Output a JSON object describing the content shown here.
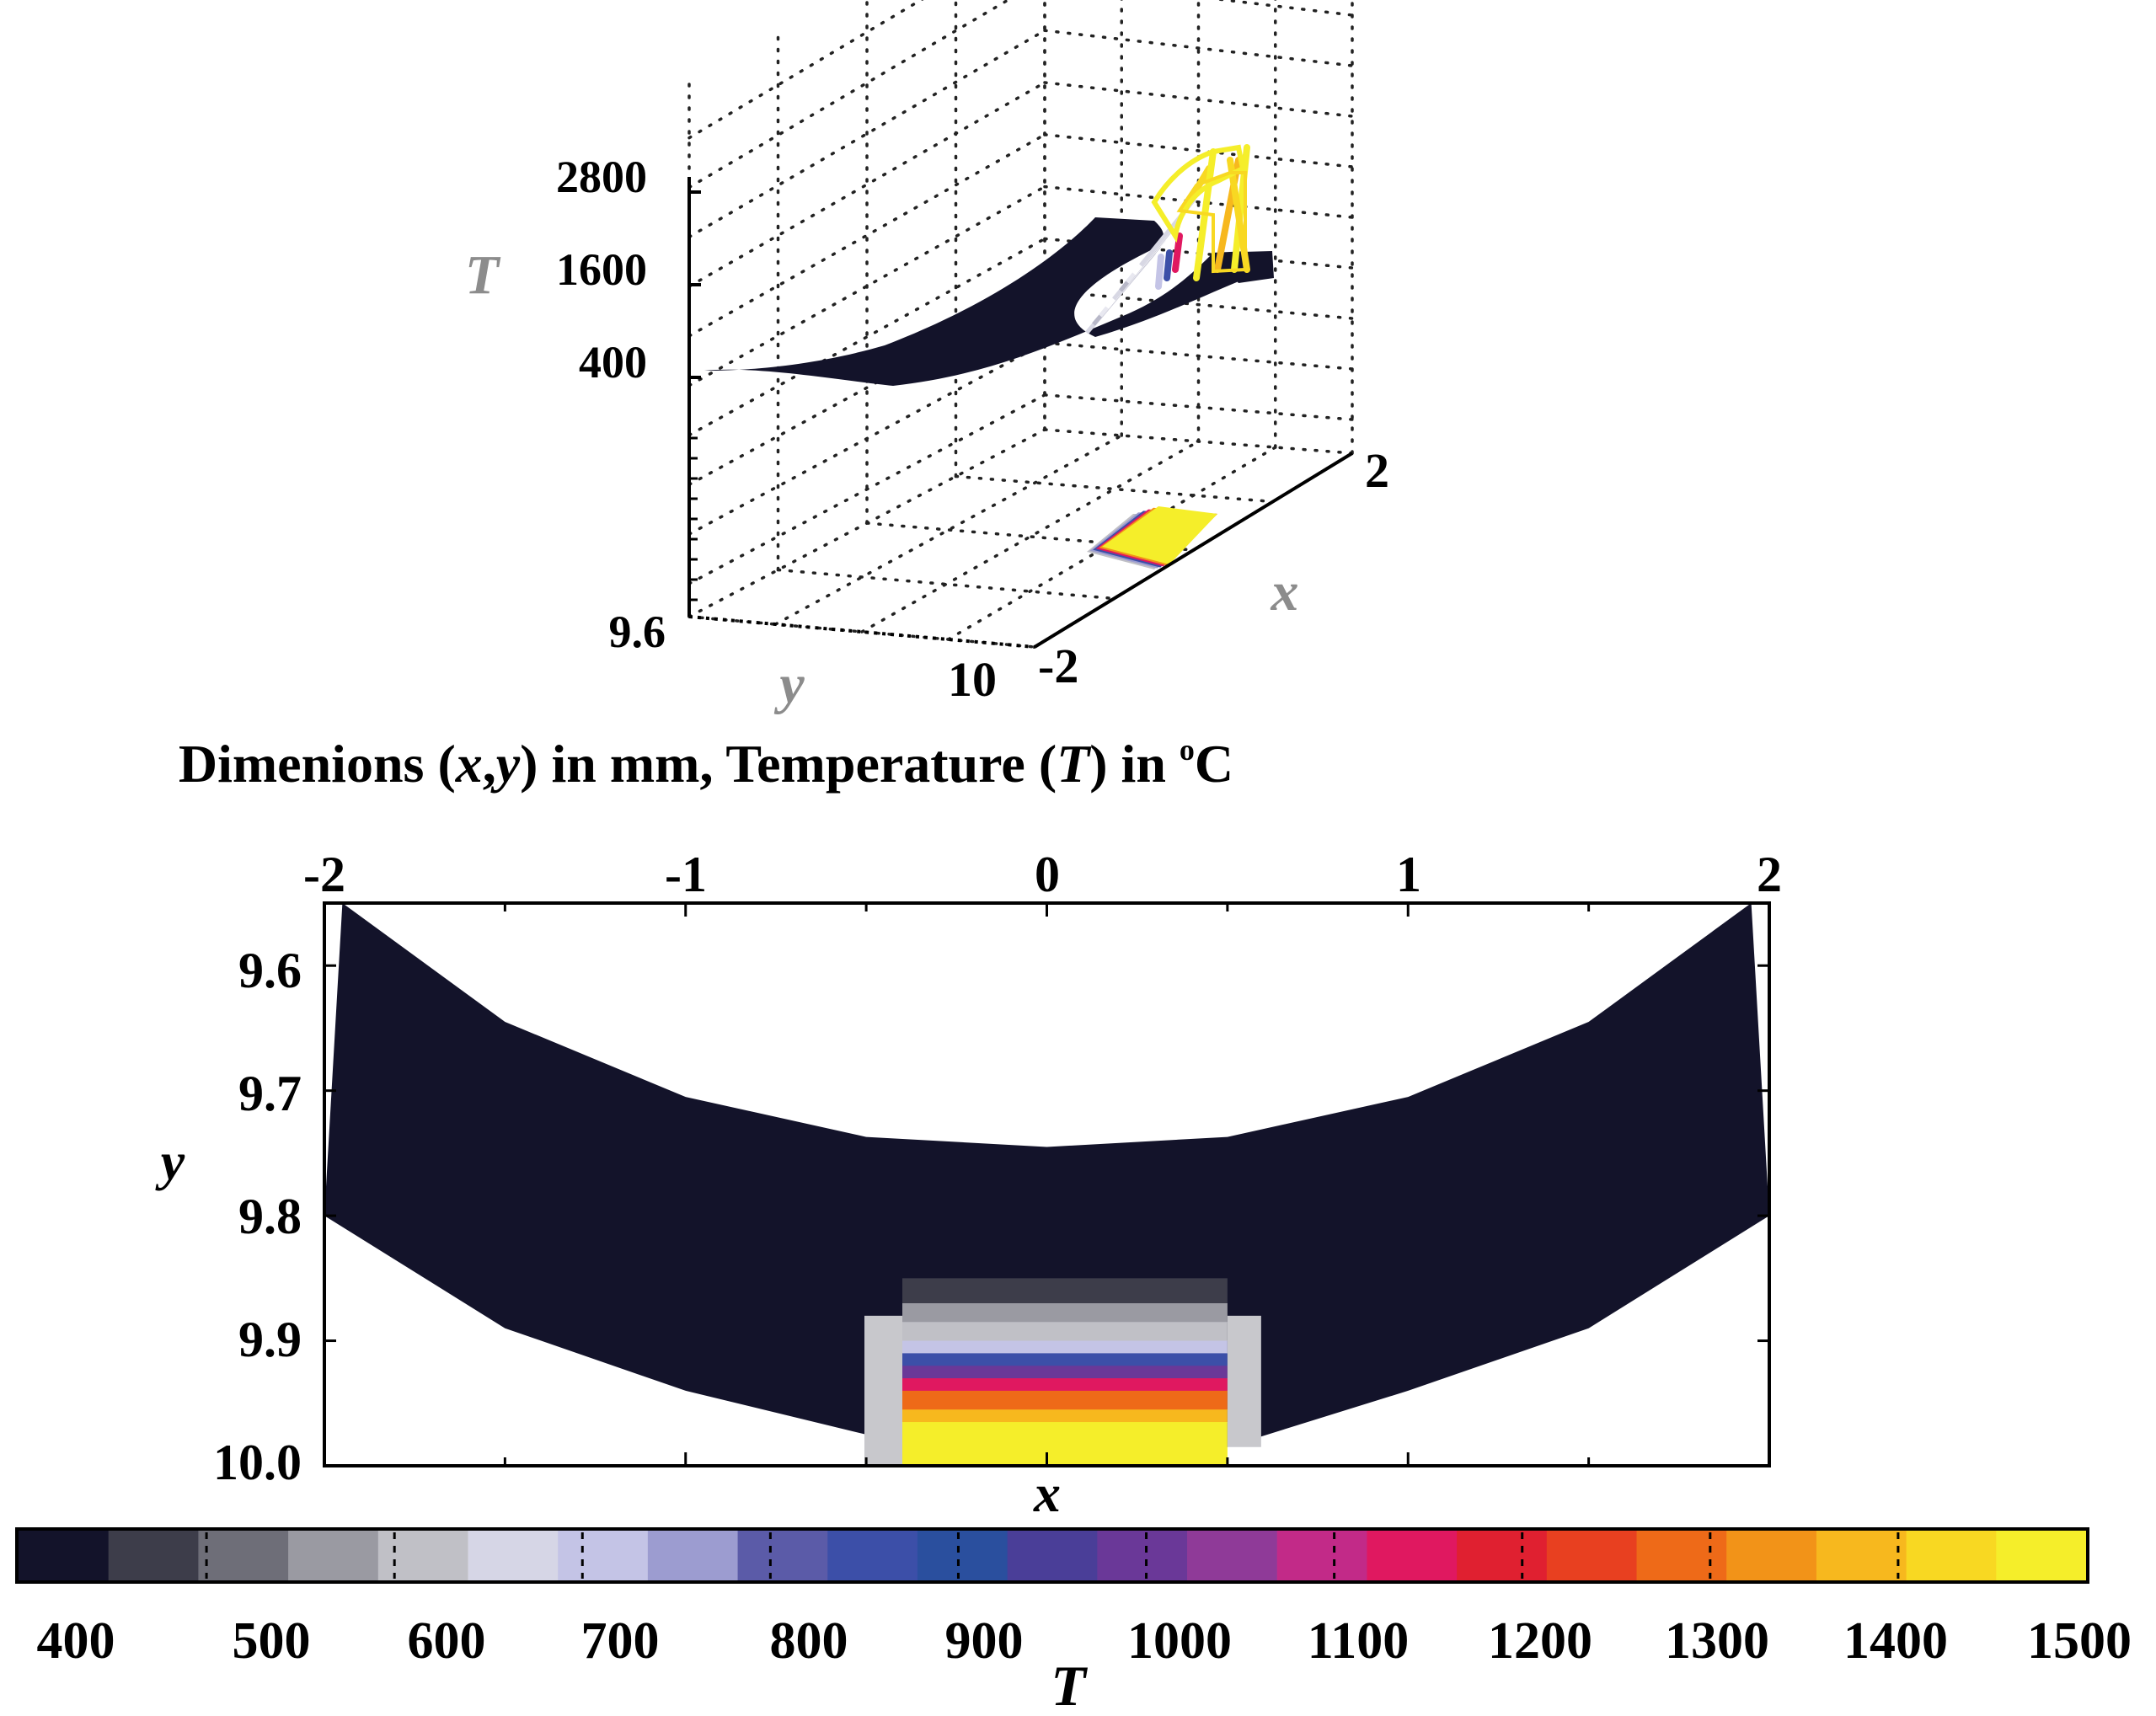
{
  "top_plot": {
    "z_label": "T",
    "x_label": "x",
    "y_label": "y",
    "z_ticks": [
      "2800",
      "1600",
      "400"
    ],
    "x_ticks": [
      "-2",
      "2"
    ],
    "y_ticks": [
      "9.6",
      "10"
    ],
    "caption_prefix": "Dimenions (",
    "caption_x": "x",
    "caption_comma": ",",
    "caption_y": "y",
    "caption_mid": ") in mm, Temperature (",
    "caption_T": "T",
    "caption_mid2": ") in ",
    "caption_degree": "o",
    "caption_unit": "C"
  },
  "chart_data": [
    {
      "type": "surface",
      "zlabel": "T",
      "xlabel": "x",
      "ylabel": "y",
      "z_ticks": [
        2800,
        1600,
        400
      ],
      "x_range": [
        -2,
        2
      ],
      "y_range": [
        9.6,
        10
      ],
      "peak_T": 2800,
      "peak_location": {
        "x": 0.5,
        "y": 10
      }
    },
    {
      "type": "heatmap",
      "xlabel": "x",
      "ylabel": "y",
      "x_ticks": [
        -2,
        -1,
        0,
        1,
        2
      ],
      "y_ticks": [
        "9.6",
        "9.7",
        "9.8",
        "9.9",
        "10.0"
      ],
      "xlim": [
        -2,
        2
      ],
      "ylim": [
        10.0,
        9.55
      ],
      "domain_outer_arc": [
        {
          "x": -1.95,
          "y": 9.55
        },
        {
          "x": -1.5,
          "y": 9.645
        },
        {
          "x": -1.0,
          "y": 9.705
        },
        {
          "x": -0.5,
          "y": 9.737
        },
        {
          "x": 0.0,
          "y": 9.745
        },
        {
          "x": 0.5,
          "y": 9.737
        },
        {
          "x": 1.0,
          "y": 9.705
        },
        {
          "x": 1.5,
          "y": 9.645
        },
        {
          "x": 1.95,
          "y": 9.55
        }
      ],
      "domain_inner_arc": [
        {
          "x": -2.0,
          "y": 9.8
        },
        {
          "x": -1.5,
          "y": 9.89
        },
        {
          "x": -1.0,
          "y": 9.94
        },
        {
          "x": -0.5,
          "y": 9.975
        },
        {
          "x": -0.3,
          "y": 9.985
        },
        {
          "x": 0.5,
          "y": 9.985
        },
        {
          "x": 1.0,
          "y": 9.94
        },
        {
          "x": 1.5,
          "y": 9.89
        },
        {
          "x": 2.0,
          "y": 9.8
        }
      ],
      "hot_zone": {
        "x_range": [
          -0.4,
          0.5
        ],
        "y_range": [
          9.85,
          10.0
        ]
      },
      "hot_zone_bands": [
        {
          "y_range": [
            9.85,
            9.87
          ],
          "T": 450
        },
        {
          "y_range": [
            9.87,
            9.885
          ],
          "T": 530
        },
        {
          "y_range": [
            9.885,
            9.9
          ],
          "T": 600
        },
        {
          "y_range": [
            9.9,
            9.91
          ],
          "T": 720
        },
        {
          "y_range": [
            9.91,
            9.92
          ],
          "T": 850
        },
        {
          "y_range": [
            9.92,
            9.93
          ],
          "T": 1000
        },
        {
          "y_range": [
            9.93,
            9.94
          ],
          "T": 1150
        },
        {
          "y_range": [
            9.94,
            9.955
          ],
          "T": 1300
        },
        {
          "y_range": [
            9.955,
            9.965
          ],
          "T": 1380
        },
        {
          "y_range": [
            9.965,
            10.0
          ],
          "T": 1500
        }
      ],
      "background_T": 400
    },
    {
      "type": "colorbar",
      "label": "T",
      "ticks": [
        400,
        500,
        600,
        700,
        800,
        900,
        1000,
        1100,
        1200,
        1300,
        1400,
        1500
      ],
      "colors": [
        "#13132a",
        "#3d3d4a",
        "#6e6e78",
        "#9a9aa2",
        "#c0c0c6",
        "#d6d6e6",
        "#c4c4e6",
        "#9c9cd0",
        "#5b5ba8",
        "#3c4fa8",
        "#2a4f9e",
        "#4a3e98",
        "#6a3898",
        "#8f3a98",
        "#c22a88",
        "#e01860",
        "#e02030",
        "#e84020",
        "#ee6a18",
        "#f29318",
        "#f7b81e",
        "#f8d822",
        "#f5ee2a"
      ]
    }
  ],
  "bottom_plot": {
    "x_label": "x",
    "y_label": "y",
    "x_ticks": [
      "-2",
      "-1",
      "0",
      "1",
      "2"
    ],
    "y_ticks": [
      "9.6",
      "9.7",
      "9.8",
      "9.9",
      "10.0"
    ]
  },
  "colorbar": {
    "label": "T",
    "ticks": [
      "400",
      "500",
      "600",
      "700",
      "800",
      "900",
      "1000",
      "1100",
      "1200",
      "1300",
      "1400",
      "1500"
    ]
  },
  "colors": {
    "domain": "#13132a",
    "hot": "#f5ee2a",
    "axis_label_gray": "#8c8c8c"
  }
}
